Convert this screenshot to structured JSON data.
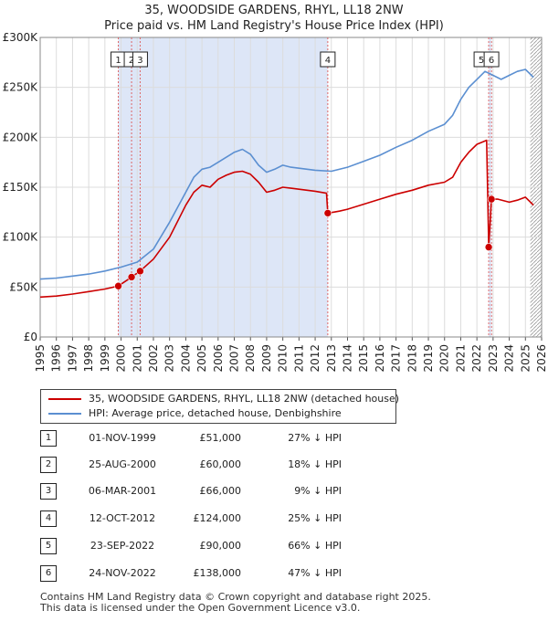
{
  "title_line1": "35, WOODSIDE GARDENS, RHYL, LL18 2NW",
  "title_line2": "Price paid vs. HM Land Registry's House Price Index (HPI)",
  "colors": {
    "property": "#cc0000",
    "hpi": "#5b8fd1",
    "shade": "#dde6f7",
    "marker_line": "#dd6666",
    "hatch": "#999999"
  },
  "chart_data": {
    "type": "line",
    "x_range": [
      1995,
      2026
    ],
    "y_range": [
      0,
      300000
    ],
    "y_ticks": [
      {
        "value": 0,
        "label": "£0"
      },
      {
        "value": 50000,
        "label": "£50K"
      },
      {
        "value": 100000,
        "label": "£100K"
      },
      {
        "value": 150000,
        "label": "£150K"
      },
      {
        "value": 200000,
        "label": "£200K"
      },
      {
        "value": 250000,
        "label": "£250K"
      },
      {
        "value": 300000,
        "label": "£300K"
      }
    ],
    "x_ticks": [
      "1995",
      "1996",
      "1997",
      "1998",
      "1999",
      "2000",
      "2001",
      "2002",
      "2003",
      "2004",
      "2005",
      "2006",
      "2007",
      "2008",
      "2009",
      "2010",
      "2011",
      "2012",
      "2013",
      "2014",
      "2015",
      "2016",
      "2017",
      "2018",
      "2019",
      "2020",
      "2021",
      "2022",
      "2023",
      "2024",
      "2025",
      "2026"
    ],
    "grid": true,
    "shaded_periods": [
      {
        "from": 1999.83,
        "to": 2012.78
      },
      {
        "from": 2022.73,
        "to": 2022.9
      }
    ],
    "forecast_from": 2025.3,
    "series": [
      {
        "name": "35, WOODSIDE GARDENS, RHYL, LL18 2NW (detached house)",
        "points": [
          [
            1995.0,
            40000
          ],
          [
            1996.0,
            41000
          ],
          [
            1997.0,
            43000
          ],
          [
            1998.0,
            45500
          ],
          [
            1999.0,
            48000
          ],
          [
            1999.83,
            51000
          ],
          [
            2000.65,
            60000
          ],
          [
            2001.18,
            66000
          ],
          [
            2002.0,
            78000
          ],
          [
            2003.0,
            100000
          ],
          [
            2004.0,
            132000
          ],
          [
            2004.5,
            145000
          ],
          [
            2005.0,
            152000
          ],
          [
            2005.5,
            150000
          ],
          [
            2006.0,
            158000
          ],
          [
            2006.5,
            162000
          ],
          [
            2007.0,
            165000
          ],
          [
            2007.5,
            166000
          ],
          [
            2008.0,
            163000
          ],
          [
            2008.5,
            155000
          ],
          [
            2009.0,
            145000
          ],
          [
            2009.5,
            147000
          ],
          [
            2010.0,
            150000
          ],
          [
            2010.5,
            149000
          ],
          [
            2011.0,
            148000
          ],
          [
            2011.5,
            147000
          ],
          [
            2012.0,
            146000
          ],
          [
            2012.7,
            144000
          ],
          [
            2012.78,
            124000
          ],
          [
            2013.5,
            126000
          ],
          [
            2014.0,
            128000
          ],
          [
            2015.0,
            133000
          ],
          [
            2016.0,
            138000
          ],
          [
            2017.0,
            143000
          ],
          [
            2018.0,
            147000
          ],
          [
            2019.0,
            152000
          ],
          [
            2020.0,
            155000
          ],
          [
            2020.5,
            160000
          ],
          [
            2021.0,
            175000
          ],
          [
            2021.5,
            185000
          ],
          [
            2022.0,
            193000
          ],
          [
            2022.6,
            197000
          ],
          [
            2022.73,
            90000
          ],
          [
            2022.9,
            138000
          ],
          [
            2023.3,
            138000
          ],
          [
            2024.0,
            135000
          ],
          [
            2024.5,
            137000
          ],
          [
            2025.0,
            140000
          ],
          [
            2025.5,
            132000
          ]
        ]
      },
      {
        "name": "HPI: Average price, detached house, Denbighshire",
        "points": [
          [
            1995.0,
            58000
          ],
          [
            1996.0,
            59000
          ],
          [
            1997.0,
            61000
          ],
          [
            1998.0,
            63000
          ],
          [
            1999.0,
            66000
          ],
          [
            2000.0,
            70000
          ],
          [
            2001.0,
            75000
          ],
          [
            2002.0,
            88000
          ],
          [
            2003.0,
            115000
          ],
          [
            2004.0,
            145000
          ],
          [
            2004.5,
            160000
          ],
          [
            2005.0,
            168000
          ],
          [
            2005.5,
            170000
          ],
          [
            2006.0,
            175000
          ],
          [
            2006.5,
            180000
          ],
          [
            2007.0,
            185000
          ],
          [
            2007.5,
            188000
          ],
          [
            2008.0,
            183000
          ],
          [
            2008.5,
            172000
          ],
          [
            2009.0,
            165000
          ],
          [
            2009.5,
            168000
          ],
          [
            2010.0,
            172000
          ],
          [
            2010.5,
            170000
          ],
          [
            2011.0,
            169000
          ],
          [
            2011.5,
            168000
          ],
          [
            2012.0,
            167000
          ],
          [
            2013.0,
            166000
          ],
          [
            2014.0,
            170000
          ],
          [
            2015.0,
            176000
          ],
          [
            2016.0,
            182000
          ],
          [
            2017.0,
            190000
          ],
          [
            2018.0,
            197000
          ],
          [
            2019.0,
            206000
          ],
          [
            2020.0,
            213000
          ],
          [
            2020.5,
            222000
          ],
          [
            2021.0,
            238000
          ],
          [
            2021.5,
            250000
          ],
          [
            2022.0,
            258000
          ],
          [
            2022.5,
            266000
          ],
          [
            2023.0,
            262000
          ],
          [
            2023.5,
            258000
          ],
          [
            2024.0,
            262000
          ],
          [
            2024.5,
            266000
          ],
          [
            2025.0,
            268000
          ],
          [
            2025.5,
            260000
          ]
        ]
      }
    ],
    "transactions": [
      {
        "label": "1",
        "date": "01-NOV-1999",
        "x": 1999.83,
        "price": 51000,
        "price_label": "£51,000",
        "hpi": "27% ↓ HPI"
      },
      {
        "label": "2",
        "date": "25-AUG-2000",
        "x": 2000.65,
        "price": 60000,
        "price_label": "£60,000",
        "hpi": "18% ↓ HPI"
      },
      {
        "label": "3",
        "date": "06-MAR-2001",
        "x": 2001.18,
        "price": 66000,
        "price_label": "£66,000",
        "hpi": "9% ↓ HPI"
      },
      {
        "label": "4",
        "date": "12-OCT-2012",
        "x": 2012.78,
        "price": 124000,
        "price_label": "£124,000",
        "hpi": "25% ↓ HPI"
      },
      {
        "label": "5",
        "date": "23-SEP-2022",
        "x": 2022.73,
        "price": 90000,
        "price_label": "£90,000",
        "hpi": "66% ↓ HPI"
      },
      {
        "label": "6",
        "date": "24-NOV-2022",
        "x": 2022.9,
        "price": 138000,
        "price_label": "£138,000",
        "hpi": "47% ↓ HPI"
      }
    ]
  },
  "legend": {
    "property": "35, WOODSIDE GARDENS, RHYL, LL18 2NW (detached house)",
    "hpi": "HPI: Average price, detached house, Denbighshire"
  },
  "footer": {
    "line1": "Contains HM Land Registry data © Crown copyright and database right 2025.",
    "line2": "This data is licensed under the Open Government Licence v3.0."
  }
}
